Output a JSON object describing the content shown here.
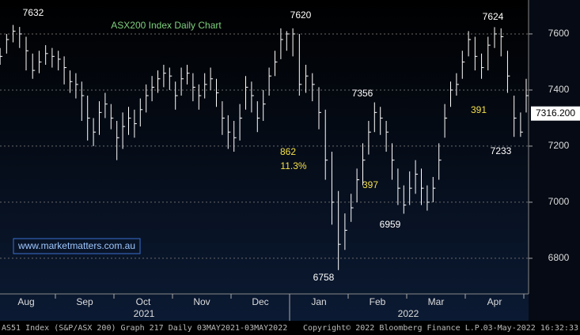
{
  "chart_data": {
    "type": "ohlc",
    "title": "ASX200 Index Daily Chart",
    "website": "www.marketmatters.com.au",
    "annotations": {
      "white": [
        "7632",
        "7620",
        "7356",
        "7624",
        "6758",
        "6959",
        "7233"
      ],
      "yellow": [
        "862",
        "11.3%",
        "397",
        "391"
      ]
    },
    "last_price": {
      "value": 7316.2,
      "label": "7316.200"
    },
    "ylim": [
      6673,
      7721
    ],
    "yticks": [
      6800,
      7000,
      7200,
      7400,
      7600
    ],
    "years": [
      "2021",
      "2022"
    ],
    "bar_color": "#ffffff",
    "months": [
      {
        "label": "Aug",
        "close": [
          7520,
          7580,
          7610,
          7600,
          7540,
          7470,
          7500,
          7530,
          7520
        ],
        "high": [
          7550,
          7600,
          7632,
          7625,
          7590,
          7530,
          7540,
          7560,
          7550
        ],
        "low": [
          7490,
          7530,
          7570,
          7550,
          7470,
          7440,
          7460,
          7490,
          7480
        ]
      },
      {
        "label": "Sep",
        "close": [
          7510,
          7480,
          7430,
          7420,
          7380,
          7300,
          7250,
          7320,
          7350,
          7300
        ],
        "high": [
          7540,
          7520,
          7470,
          7460,
          7430,
          7380,
          7300,
          7360,
          7390,
          7350
        ],
        "low": [
          7470,
          7420,
          7390,
          7370,
          7290,
          7220,
          7200,
          7240,
          7300,
          7260
        ]
      },
      {
        "label": "Oct",
        "close": [
          7230,
          7270,
          7300,
          7280,
          7330,
          7380,
          7410,
          7440,
          7460,
          7450
        ],
        "high": [
          7290,
          7320,
          7340,
          7330,
          7370,
          7420,
          7450,
          7470,
          7490,
          7480
        ],
        "low": [
          7150,
          7190,
          7240,
          7230,
          7270,
          7320,
          7360,
          7390,
          7410,
          7400
        ]
      },
      {
        "label": "Nov",
        "close": [
          7380,
          7440,
          7460,
          7410,
          7380,
          7420,
          7440,
          7390,
          7300,
          7250
        ],
        "high": [
          7430,
          7480,
          7490,
          7460,
          7420,
          7460,
          7480,
          7440,
          7360,
          7310
        ],
        "low": [
          7330,
          7380,
          7420,
          7360,
          7330,
          7370,
          7400,
          7340,
          7240,
          7190
        ]
      },
      {
        "label": "Dec",
        "close": [
          7230,
          7300,
          7410,
          7380,
          7300,
          7350,
          7450,
          7500,
          7580,
          7600
        ],
        "high": [
          7290,
          7350,
          7450,
          7430,
          7360,
          7400,
          7480,
          7540,
          7620,
          7610
        ],
        "low": [
          7180,
          7220,
          7330,
          7320,
          7250,
          7290,
          7380,
          7450,
          7510,
          7540
        ]
      },
      {
        "label": "Jan",
        "close": [
          7600,
          7420,
          7450,
          7420,
          7320,
          7150,
          7000,
          6850,
          6900
        ],
        "high": [
          7620,
          7600,
          7490,
          7460,
          7410,
          7330,
          7180,
          7040,
          6960
        ],
        "low": [
          7520,
          7380,
          7390,
          7360,
          7260,
          7080,
          6920,
          6758,
          6830
        ]
      },
      {
        "label": "Feb",
        "close": [
          6980,
          7080,
          7150,
          7250,
          7320,
          7300,
          7250,
          7150,
          7050,
          6990
        ],
        "high": [
          7030,
          7120,
          7210,
          7290,
          7356,
          7340,
          7290,
          7210,
          7120,
          7060
        ],
        "low": [
          6930,
          7000,
          7060,
          7170,
          7250,
          7240,
          7180,
          7080,
          6990,
          6959
        ]
      },
      {
        "label": "Mar",
        "close": [
          7050,
          7100,
          7050,
          7000,
          7050,
          7150,
          7300,
          7400,
          7420,
          7500
        ],
        "high": [
          7110,
          7150,
          7120,
          7060,
          7090,
          7210,
          7350,
          7430,
          7460,
          7540
        ],
        "low": [
          6990,
          7030,
          6990,
          6970,
          7000,
          7080,
          7230,
          7340,
          7380,
          7440
        ]
      },
      {
        "label": "Apr",
        "close": [
          7580,
          7520,
          7480,
          7560,
          7600,
          7590,
          7450,
          7300,
          7250
        ],
        "high": [
          7610,
          7590,
          7530,
          7590,
          7624,
          7620,
          7540,
          7380,
          7320
        ],
        "low": [
          7520,
          7470,
          7440,
          7470,
          7550,
          7520,
          7390,
          7233,
          7233
        ]
      },
      {
        "label": null,
        "close": [
          7380,
          7316.2
        ],
        "high": [
          7440,
          7350
        ],
        "low": [
          7320,
          7300
        ]
      }
    ],
    "footer": {
      "left": "AS51 Index (S&P/ASX 200) Graph 217  Daily 03MAY2021-03MAY2022",
      "center": "Copyright© 2022 Bloomberg Finance L.P.",
      "right": "03-May-2022 16:32:33"
    }
  }
}
